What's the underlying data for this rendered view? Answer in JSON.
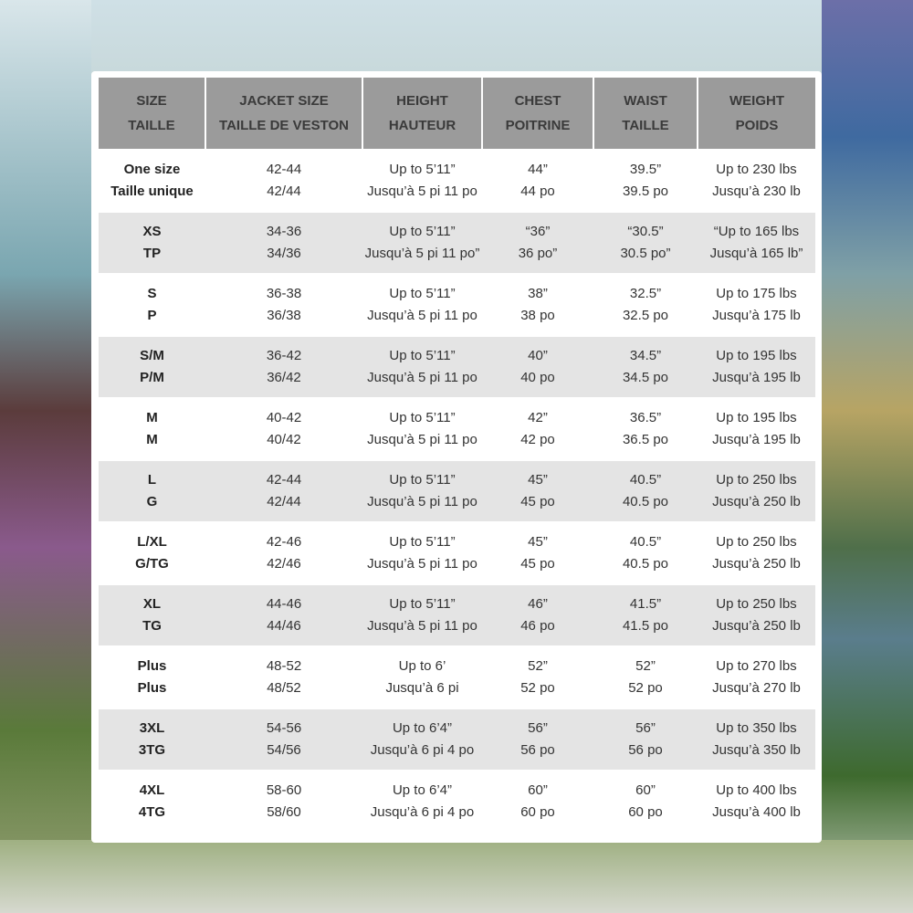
{
  "headers": [
    {
      "en": "SIZE",
      "fr": "TAILLE"
    },
    {
      "en": "JACKET SIZE",
      "fr": "TAILLE DE VESTON"
    },
    {
      "en": "HEIGHT",
      "fr": "HAUTEUR"
    },
    {
      "en": "CHEST",
      "fr": "POITRINE"
    },
    {
      "en": "WAIST",
      "fr": "TAILLE"
    },
    {
      "en": "WEIGHT",
      "fr": "POIDS"
    }
  ],
  "rows": [
    [
      [
        "One size",
        "Taille unique"
      ],
      [
        "42-44",
        "42/44"
      ],
      [
        "Up to 5’11”",
        "Jusqu’à 5 pi 11 po"
      ],
      [
        "44”",
        "44 po"
      ],
      [
        "39.5”",
        "39.5 po"
      ],
      [
        "Up to 230 lbs",
        "Jusqu’à 230 lb"
      ]
    ],
    [
      [
        "XS",
        "TP"
      ],
      [
        "34-36",
        "34/36"
      ],
      [
        "Up to 5’11”",
        "Jusqu’à 5 pi 11 po”"
      ],
      [
        "“36”",
        "36 po”"
      ],
      [
        "“30.5”",
        "30.5 po”"
      ],
      [
        "“Up to 165 lbs",
        "Jusqu’à 165 lb”"
      ]
    ],
    [
      [
        "S",
        "P"
      ],
      [
        "36-38",
        "36/38"
      ],
      [
        "Up to 5’11”",
        "Jusqu’à 5 pi 11 po"
      ],
      [
        "38”",
        "38 po"
      ],
      [
        "32.5”",
        "32.5 po"
      ],
      [
        "Up to 175 lbs",
        "Jusqu’à 175 lb"
      ]
    ],
    [
      [
        "S/M",
        "P/M"
      ],
      [
        "36-42",
        "36/42"
      ],
      [
        "Up to 5’11”",
        "Jusqu’à 5 pi 11 po"
      ],
      [
        "40”",
        "40 po"
      ],
      [
        "34.5”",
        "34.5 po"
      ],
      [
        "Up to 195 lbs",
        "Jusqu’à 195 lb"
      ]
    ],
    [
      [
        "M",
        "M"
      ],
      [
        "40-42",
        "40/42"
      ],
      [
        "Up to 5’11”",
        "Jusqu’à 5 pi 11 po"
      ],
      [
        "42”",
        "42 po"
      ],
      [
        "36.5”",
        "36.5 po"
      ],
      [
        "Up to 195 lbs",
        "Jusqu’à 195 lb"
      ]
    ],
    [
      [
        "L",
        "G"
      ],
      [
        "42-44",
        "42/44"
      ],
      [
        "Up to 5’11”",
        "Jusqu’à 5 pi 11 po"
      ],
      [
        "45”",
        "45 po"
      ],
      [
        "40.5”",
        "40.5 po"
      ],
      [
        "Up to 250 lbs",
        "Jusqu’à 250 lb"
      ]
    ],
    [
      [
        "L/XL",
        "G/TG"
      ],
      [
        "42-46",
        "42/46"
      ],
      [
        "Up to 5’11”",
        "Jusqu’à 5 pi 11 po"
      ],
      [
        "45”",
        "45 po"
      ],
      [
        "40.5”",
        "40.5 po"
      ],
      [
        "Up to 250 lbs",
        "Jusqu’à 250 lb"
      ]
    ],
    [
      [
        "XL",
        "TG"
      ],
      [
        "44-46",
        "44/46"
      ],
      [
        "Up to 5’11”",
        "Jusqu’à 5 pi 11 po"
      ],
      [
        "46”",
        "46 po"
      ],
      [
        "41.5”",
        "41.5 po"
      ],
      [
        "Up to 250 lbs",
        "Jusqu’à 250 lb"
      ]
    ],
    [
      [
        "Plus",
        "Plus"
      ],
      [
        "48-52",
        "48/52"
      ],
      [
        "Up to 6’",
        "Jusqu’à 6 pi"
      ],
      [
        "52”",
        "52 po"
      ],
      [
        "52”",
        "52 po"
      ],
      [
        "Up to 270 lbs",
        "Jusqu’à 270 lb"
      ]
    ],
    [
      [
        "3XL",
        "3TG"
      ],
      [
        "54-56",
        "54/56"
      ],
      [
        "Up to 6’4”",
        "Jusqu’à 6 pi 4 po"
      ],
      [
        "56”",
        "56 po"
      ],
      [
        "56”",
        "56 po"
      ],
      [
        "Up to 350 lbs",
        "Jusqu’à 350 lb"
      ]
    ],
    [
      [
        "4XL",
        "4TG"
      ],
      [
        "58-60",
        "58/60"
      ],
      [
        "Up to 6’4”",
        "Jusqu’à 6 pi 4 po"
      ],
      [
        "60”",
        "60 po"
      ],
      [
        "60”",
        "60 po"
      ],
      [
        "Up to 400 lbs",
        "Jusqu’à 400 lb"
      ]
    ]
  ]
}
